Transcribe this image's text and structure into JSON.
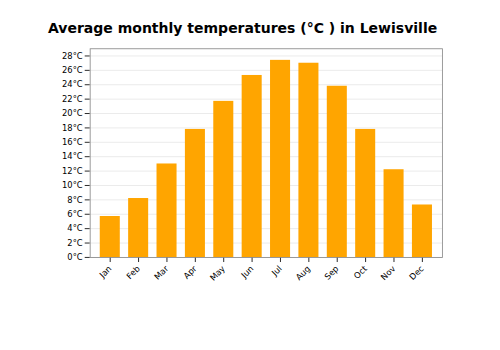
{
  "chart_data": {
    "type": "bar",
    "title": "Average monthly temperatures (°C ) in Lewisville",
    "categories": [
      "Jan",
      "Feb",
      "Mar",
      "Apr",
      "May",
      "Jun",
      "Jul",
      "Aug",
      "Sep",
      "Oct",
      "Nov",
      "Dec"
    ],
    "values": [
      5.7,
      8.2,
      13.0,
      17.8,
      21.7,
      25.3,
      27.4,
      27.0,
      23.8,
      17.8,
      12.2,
      7.3
    ],
    "color": "#FFA500",
    "ylim": [
      0,
      29
    ],
    "yticks": [
      {
        "value": 0,
        "label": "0°C"
      },
      {
        "value": 2,
        "label": "2°C"
      },
      {
        "value": 4,
        "label": "4°C"
      },
      {
        "value": 6,
        "label": "6°C"
      },
      {
        "value": 8,
        "label": "8°C"
      },
      {
        "value": 10,
        "label": "10°C"
      },
      {
        "value": 12,
        "label": "12°C"
      },
      {
        "value": 14,
        "label": "14°C"
      },
      {
        "value": 16,
        "label": "16°C"
      },
      {
        "value": 18,
        "label": "18°C"
      },
      {
        "value": 20,
        "label": "20°C"
      },
      {
        "value": 22,
        "label": "22°C"
      },
      {
        "value": 24,
        "label": "24°C"
      },
      {
        "value": 26,
        "label": "26°C"
      },
      {
        "value": 28,
        "label": "28°C"
      }
    ],
    "grid": true
  }
}
